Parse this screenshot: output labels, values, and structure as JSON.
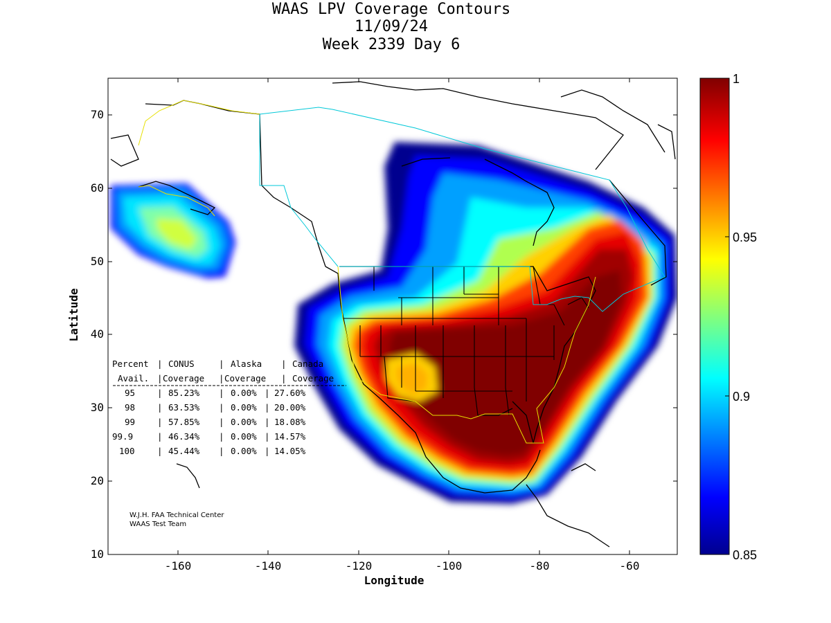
{
  "title": {
    "line1": "WAAS LPV Coverage Contours",
    "line2": "11/09/24",
    "line3": "Week 2339 Day 6"
  },
  "axes": {
    "xlabel": "Longitude",
    "ylabel": "Latitude",
    "xticks": [
      -160,
      -140,
      -120,
      -100,
      -80,
      -60
    ],
    "yticks": [
      10,
      20,
      30,
      40,
      50,
      60,
      70
    ],
    "xlim": [
      -175,
      -50
    ],
    "ylim": [
      10,
      75
    ]
  },
  "colorbar": {
    "range": [
      0.85,
      1
    ],
    "ticks": [
      "0.85",
      "0.9",
      "0.95",
      "1"
    ],
    "colormap": "jet",
    "colors": [
      "#00008f",
      "#0000ff",
      "#00ffff",
      "#ffff00",
      "#ff0000",
      "#800000"
    ]
  },
  "coverage_table": {
    "header1": [
      "Percent",
      "CONUS",
      "Alaska",
      "Canada"
    ],
    "header2": [
      "Avail.",
      "Coverage",
      "Coverage",
      "Coverage"
    ],
    "rows": [
      [
        "95",
        "85.23%",
        "0.00%",
        "27.60%"
      ],
      [
        "98",
        "63.53%",
        "0.00%",
        "20.00%"
      ],
      [
        "99",
        "57.85%",
        "0.00%",
        "18.08%"
      ],
      [
        "99.9",
        "46.34%",
        "0.00%",
        "14.57%"
      ],
      [
        "100",
        "45.44%",
        "0.00%",
        "14.05%"
      ]
    ]
  },
  "credit": {
    "line1": "W.J.H. FAA Technical Center",
    "line2": "WAAS Test Team"
  }
}
